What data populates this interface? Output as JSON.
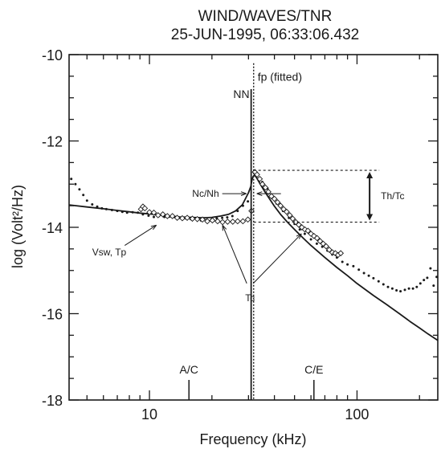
{
  "chart_data": {
    "type": "line",
    "title": "WIND/WAVES/TNR",
    "subtitle": "25-JUN-1995, 06:33:06.432",
    "xlabel": "Frequency (kHz)",
    "ylabel": "log (Volt²/Hz)",
    "xscale": "log",
    "xlim": [
      4.1,
      245
    ],
    "ylim": [
      -18,
      -10
    ],
    "xticks": [
      10,
      100
    ],
    "xtick_labels": [
      "10",
      "100"
    ],
    "yticks": [
      -18,
      -16,
      -14,
      -12,
      -10
    ],
    "ytick_labels": [
      "-18",
      "-16",
      "-14",
      "-12",
      "-10"
    ],
    "grid": false,
    "series": [
      {
        "style": "line",
        "x": [
          4.1,
          5,
          6,
          7,
          8,
          9,
          10,
          11,
          12,
          14,
          16,
          18,
          20,
          22,
          24,
          26,
          28,
          29,
          30,
          30.8,
          31.2,
          31.6,
          32,
          32.5,
          33,
          34,
          36,
          38,
          40,
          43,
          46,
          50,
          55,
          60,
          70,
          80,
          90,
          100,
          120,
          140,
          160,
          180,
          200,
          220,
          245
        ],
        "y": [
          -13.48,
          -13.53,
          -13.57,
          -13.61,
          -13.64,
          -13.67,
          -13.69,
          -13.71,
          -13.73,
          -13.76,
          -13.77,
          -13.78,
          -13.77,
          -13.74,
          -13.7,
          -13.62,
          -13.48,
          -13.34,
          -13.2,
          -13.05,
          -12.9,
          -12.82,
          -12.79,
          -12.82,
          -12.87,
          -12.98,
          -13.18,
          -13.35,
          -13.51,
          -13.71,
          -13.87,
          -14.05,
          -14.25,
          -14.42,
          -14.7,
          -14.93,
          -15.12,
          -15.3,
          -15.58,
          -15.8,
          -16.0,
          -16.18,
          -16.33,
          -16.47,
          -16.62
        ]
      },
      {
        "style": "points-dot",
        "x": [
          4.2,
          4.4,
          4.6,
          4.8,
          5.0,
          5.3,
          5.6,
          5.9,
          6.2,
          6.6,
          7.0,
          7.4,
          7.8,
          8.3,
          8.8,
          9.3,
          9.9,
          10.5,
          11.1,
          11.8,
          12.5,
          13.2,
          14.0,
          14.9,
          15.8,
          16.7,
          17.7,
          18.8,
          19.9,
          21.1,
          22.4,
          23.7,
          25.1,
          26.6,
          28.2,
          29.8,
          33,
          35,
          37,
          39,
          41,
          44,
          47,
          50,
          53,
          56,
          60,
          64,
          68,
          72,
          76,
          80,
          85,
          90,
          96,
          102,
          108,
          114,
          120,
          127,
          134,
          141,
          148,
          155,
          162,
          170,
          178,
          186,
          194,
          202,
          210,
          218,
          226,
          234,
          242
        ],
        "y": [
          -12.88,
          -13.0,
          -13.12,
          -13.25,
          -13.38,
          -13.47,
          -13.52,
          -13.56,
          -13.58,
          -13.6,
          -13.62,
          -13.64,
          -13.66,
          -13.65,
          -13.66,
          -13.7,
          -13.73,
          -13.76,
          -13.74,
          -13.76,
          -13.75,
          -13.76,
          -13.78,
          -13.79,
          -13.81,
          -13.8,
          -13.84,
          -13.83,
          -13.82,
          -13.79,
          -13.78,
          -13.77,
          -13.74,
          -13.62,
          -13.5,
          -13.4,
          -12.75,
          -12.95,
          -13.1,
          -13.28,
          -13.45,
          -13.62,
          -13.78,
          -13.92,
          -14.05,
          -14.15,
          -14.28,
          -14.38,
          -14.45,
          -14.54,
          -14.63,
          -14.7,
          -14.8,
          -14.86,
          -14.9,
          -14.98,
          -15.06,
          -15.12,
          -15.18,
          -15.25,
          -15.32,
          -15.38,
          -15.42,
          -15.46,
          -15.48,
          -15.45,
          -15.42,
          -15.42,
          -15.38,
          -15.3,
          -15.22,
          -15.17,
          -14.95,
          -15.35,
          -15.15
        ]
      },
      {
        "style": "points-diamond",
        "x": [
          9.1,
          9.3,
          9.5,
          10.0,
          10.5,
          11.0,
          11.6,
          12.2,
          12.9,
          13.6,
          14.4,
          15.2,
          16.1,
          17.0,
          18.0,
          19.0,
          20.1,
          21.3,
          22.5,
          23.8,
          25.2,
          26.6,
          28.2,
          29.8,
          31.0,
          32.2,
          33.0,
          34.0,
          35.0,
          36.2,
          37.4,
          38.7,
          40.0,
          41.4,
          42.8,
          44.3,
          45.8,
          47.4,
          49.0,
          50.7,
          52.4,
          54.2,
          56.1,
          58.0,
          60.0,
          62.0,
          64.2,
          66.4,
          68.7,
          71.0,
          73.5,
          76.0,
          78.6,
          81.0,
          83.5
        ],
        "y": [
          -13.58,
          -13.52,
          -13.56,
          -13.65,
          -13.66,
          -13.72,
          -13.7,
          -13.74,
          -13.74,
          -13.78,
          -13.79,
          -13.78,
          -13.8,
          -13.81,
          -13.82,
          -13.86,
          -13.84,
          -13.86,
          -13.88,
          -13.87,
          -13.87,
          -13.86,
          -13.86,
          -13.82,
          -13.62,
          -12.72,
          -12.78,
          -12.88,
          -13.0,
          -13.08,
          -13.18,
          -13.28,
          -13.34,
          -13.42,
          -13.5,
          -13.58,
          -13.64,
          -13.72,
          -13.8,
          -13.88,
          -13.94,
          -14.0,
          -14.05,
          -14.08,
          -14.15,
          -14.2,
          -14.25,
          -14.32,
          -14.38,
          -14.44,
          -14.52,
          -14.58,
          -14.6,
          -14.64,
          -14.6
        ]
      }
    ],
    "annotations": {
      "fp_label": "fp (fitted)",
      "nn_label": "NN",
      "nc_nh_label": "Nc/Nh",
      "th_tc_label": "Th/Tc",
      "vsw_tp_label": "Vsw, Tp",
      "tc_label": "Tc",
      "ac_label": "A/C",
      "ce_label": "C/E"
    },
    "fp_frequency": 31.2,
    "nn_frequency": 30.9,
    "ac_frequency": 15.5,
    "ce_frequency": 62,
    "th_tc_top": -12.68,
    "th_tc_bottom": -13.88
  }
}
